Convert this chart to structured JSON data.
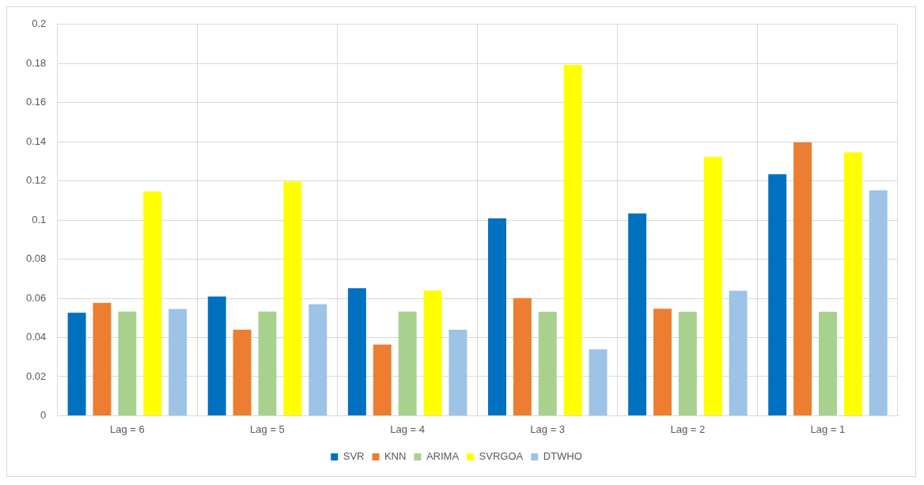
{
  "chart_data": {
    "type": "bar",
    "categories": [
      "Lag = 6",
      "Lag = 5",
      "Lag = 4",
      "Lag = 3",
      "Lag = 2",
      "Lag = 1"
    ],
    "series": [
      {
        "name": "SVR",
        "color": "#0070c0",
        "values": [
          0.0526,
          0.0609,
          0.0652,
          0.1008,
          0.1034,
          0.1234
        ]
      },
      {
        "name": "KNN",
        "color": "#ed7d31",
        "values": [
          0.0577,
          0.0439,
          0.0364,
          0.0601,
          0.0546,
          0.1397
        ]
      },
      {
        "name": "ARIMA",
        "color": "#a9d18e",
        "values": [
          0.0532,
          0.0532,
          0.0532,
          0.0531,
          0.0531,
          0.0531
        ]
      },
      {
        "name": "SVRGOA",
        "color": "#ffff00",
        "values": [
          0.1146,
          0.1197,
          0.064,
          0.1793,
          0.1323,
          0.1346
        ]
      },
      {
        "name": "DTWHO",
        "color": "#9dc3e6",
        "values": [
          0.0545,
          0.057,
          0.0439,
          0.0339,
          0.0639,
          0.1152
        ]
      }
    ],
    "ylim": [
      0,
      0.2
    ],
    "yticks": [
      0,
      0.02,
      0.04,
      0.06,
      0.08,
      0.1,
      0.12,
      0.14,
      0.16,
      0.18,
      0.2
    ],
    "grid": true,
    "legend": "bottom"
  }
}
